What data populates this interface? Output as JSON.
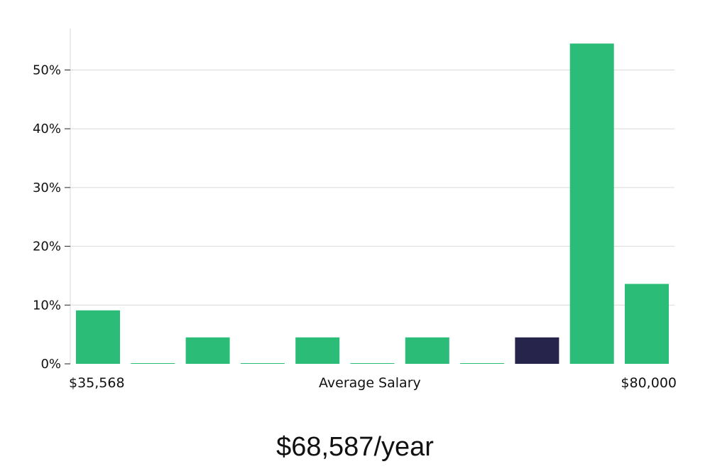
{
  "chart_data": {
    "type": "bar",
    "xlabel": "Average Salary",
    "x_range_labels": {
      "min": "$35,568",
      "max": "$80,000"
    },
    "ylim": [
      0,
      57
    ],
    "y_ticks": [
      0,
      10,
      20,
      30,
      40,
      50
    ],
    "y_tick_format": "percent",
    "grid": true,
    "values": [
      9.1,
      0.1,
      4.5,
      0.1,
      4.5,
      0.1,
      4.5,
      0.1,
      4.5,
      54.5,
      13.6
    ],
    "highlight_index": 8,
    "colors": {
      "bar": "#2bbd77",
      "highlight": "#26244a",
      "grid": "#d9d9d9"
    }
  },
  "headline": "$68,587/year"
}
